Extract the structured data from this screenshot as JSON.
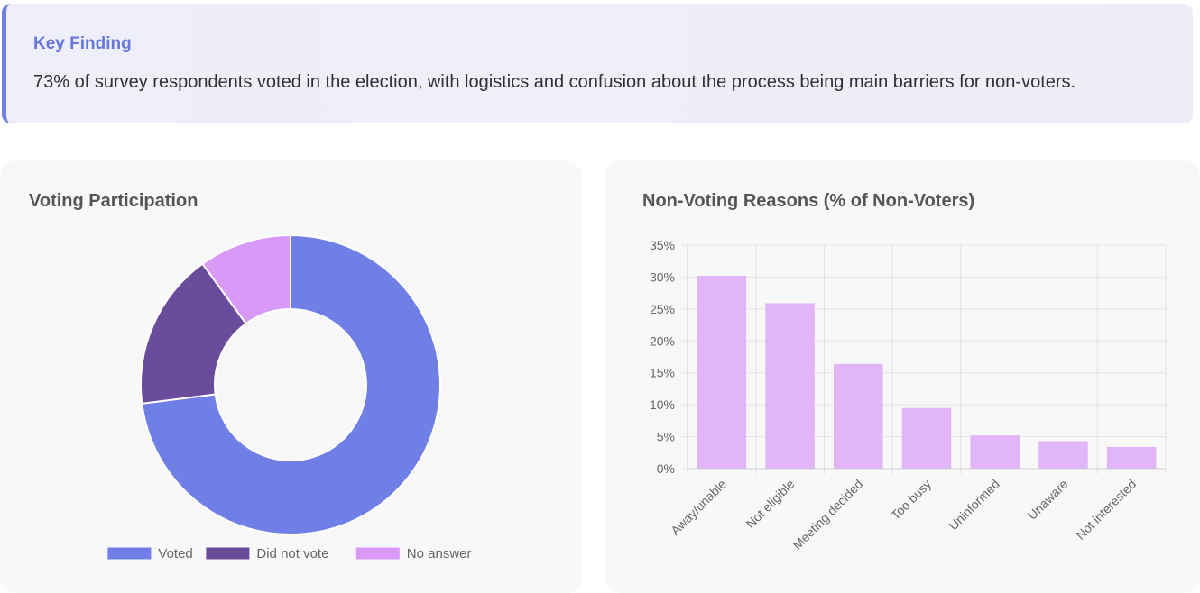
{
  "finding": {
    "title": "Key Finding",
    "text": "73% of survey respondents voted in the election, with logistics and confusion about the process being main barriers for non-voters."
  },
  "chart_data": [
    {
      "type": "pie",
      "variant": "donut",
      "title": "Voting Participation",
      "categories": [
        "Voted",
        "Did not vote",
        "No answer"
      ],
      "values": [
        73,
        17,
        10
      ],
      "colors": [
        "#6f7fe6",
        "#6a4c9c",
        "#d899f7"
      ],
      "legend_position": "bottom"
    },
    {
      "type": "bar",
      "title": "Non-Voting Reasons (% of Non-Voters)",
      "categories": [
        "Away/unable",
        "Not eligible",
        "Meeting decided",
        "Too busy",
        "Uninformed",
        "Unaware",
        "Not interested"
      ],
      "values": [
        30.2,
        25.9,
        16.4,
        9.5,
        5.2,
        4.3,
        3.4
      ],
      "ylim": [
        0,
        35
      ],
      "yticks": [
        "0%",
        "5%",
        "10%",
        "15%",
        "20%",
        "25%",
        "30%",
        "35%"
      ],
      "bar_color": "#e2b4f8",
      "grid": true
    }
  ]
}
